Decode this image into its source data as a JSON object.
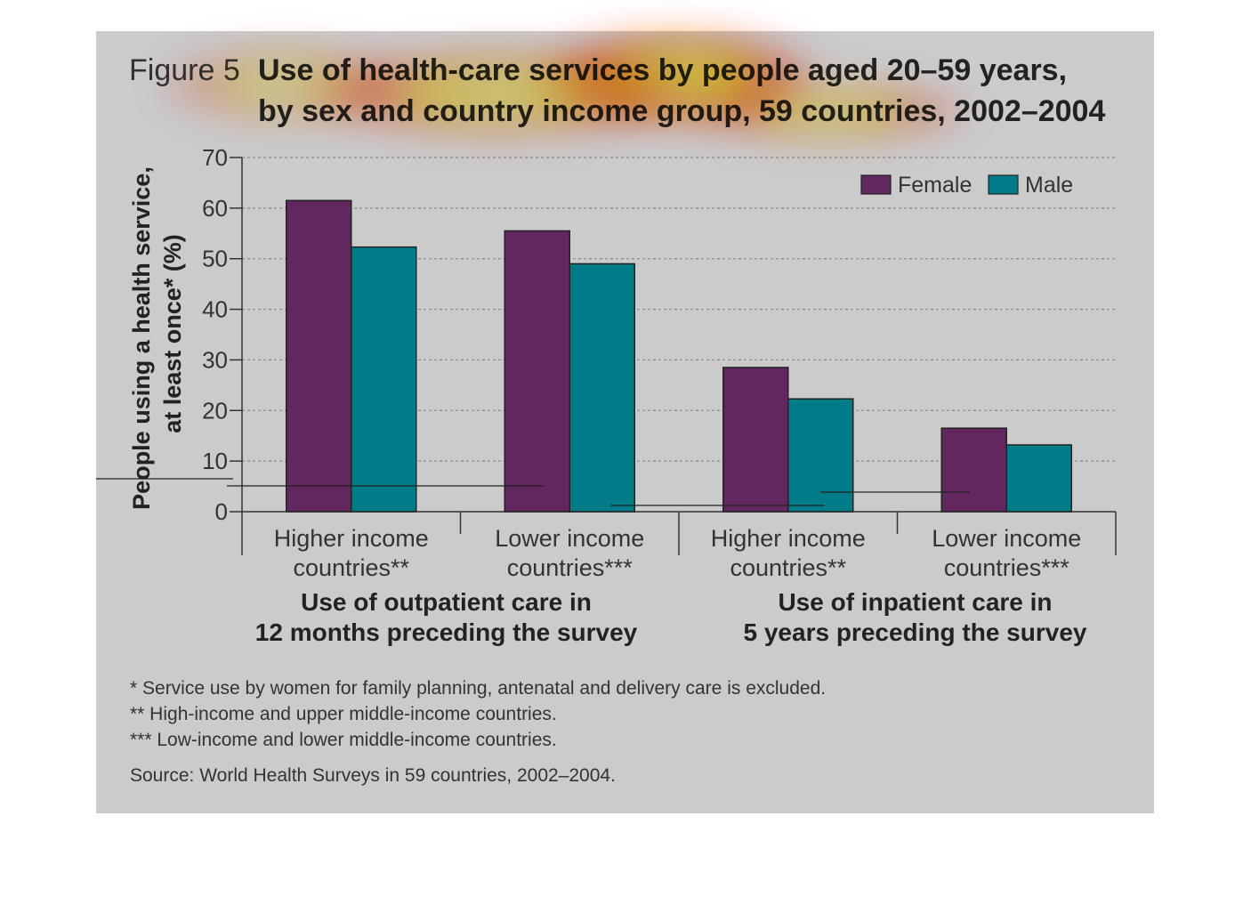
{
  "figure": {
    "label": "Figure 5",
    "title_line1": "Use of health-care services by people aged 20–59 years,",
    "title_line2": "by sex and country income group, 59 countries, 2002–2004"
  },
  "chart_data": {
    "type": "bar",
    "categories": [
      "Higher income countries**",
      "Lower income countries***",
      "Higher income countries**",
      "Lower income countries***"
    ],
    "category_lines": [
      [
        "Higher income",
        "countries**"
      ],
      [
        "Lower income",
        "countries***"
      ],
      [
        "Higher income",
        "countries**"
      ],
      [
        "Lower income",
        "countries***"
      ]
    ],
    "groups": [
      {
        "lines": [
          "Use of outpatient care in",
          "12 months preceding the survey"
        ]
      },
      {
        "lines": [
          "Use of inpatient care in",
          "5 years preceding the survey"
        ]
      }
    ],
    "series": [
      {
        "name": "Female",
        "color": "#62275f",
        "values": [
          61.5,
          55.5,
          28.5,
          16.5
        ]
      },
      {
        "name": "Male",
        "color": "#007c88",
        "values": [
          52.3,
          49.0,
          22.3,
          13.2
        ]
      }
    ],
    "ylabel_line1": "People using a health service,",
    "ylabel_line2": "at least once* (%)",
    "ylim": [
      0,
      70
    ],
    "yticks": [
      0,
      10,
      20,
      30,
      40,
      50,
      60,
      70
    ],
    "grid": true,
    "legend_position": "top-right"
  },
  "notes": [
    "* Service use by women for family planning, antenatal and delivery care is excluded.",
    "** High-income and upper middle-income countries.",
    "*** Low-income and lower middle-income countries."
  ],
  "source": "Source: World Health Surveys in 59 countries, 2002–2004.",
  "colors": {
    "panel": "#cbcbcb",
    "female": "#62275f",
    "male": "#007c88"
  }
}
